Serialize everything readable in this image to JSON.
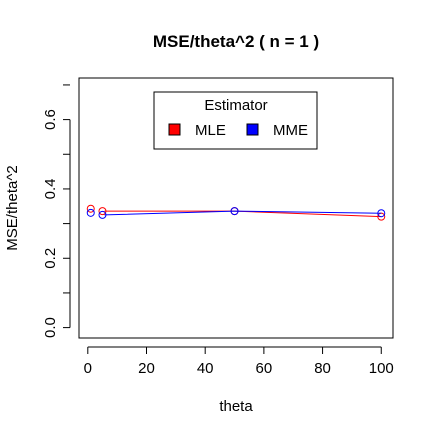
{
  "chart_data": {
    "type": "line",
    "title": "MSE/theta^2 ( n = 1 )",
    "xlabel": "theta",
    "ylabel": "MSE/theta^2",
    "xlim": [
      -3,
      104
    ],
    "ylim": [
      -0.03,
      0.72
    ],
    "xticks": [
      0,
      20,
      40,
      60,
      80,
      100
    ],
    "yticks": [
      0.0,
      0.2,
      0.4,
      0.6
    ],
    "xtick_labels": [
      "0",
      "20",
      "40",
      "60",
      "80",
      "100"
    ],
    "ytick_labels": [
      "0.0",
      "0.2",
      "0.4",
      "0.6"
    ],
    "x": [
      1,
      5,
      50,
      100
    ],
    "legend": {
      "title": "Estimator",
      "placement": "top-center"
    },
    "series": [
      {
        "name": "MLE",
        "color": "#ff0000",
        "values": [
          0.343,
          0.336,
          0.336,
          0.32
        ]
      },
      {
        "name": "MME",
        "color": "#0000ff",
        "values": [
          0.331,
          0.325,
          0.336,
          0.33
        ]
      }
    ],
    "grid": false
  }
}
